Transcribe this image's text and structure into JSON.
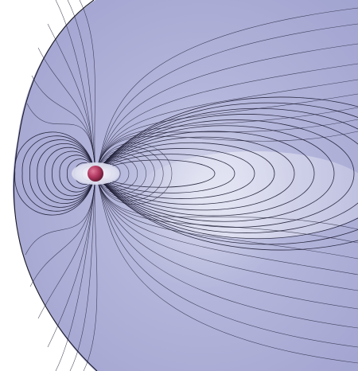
{
  "image": {
    "description_tags": [
      "magnetosphere",
      "dipole-field-lines",
      "planet"
    ]
  },
  "colors": {
    "background": "#ffffff",
    "magnetosphere_fill": "#a6a8d3",
    "magnetosphere_highlight": "#e7e8f4",
    "bow_shock_stroke": "#1a1a24",
    "field_line_stroke": "#1d1c33",
    "planet_core": "#b33a63",
    "planet_shadow": "#4d0f24"
  },
  "icons": {
    "planet": "planet-sphere-icon"
  }
}
